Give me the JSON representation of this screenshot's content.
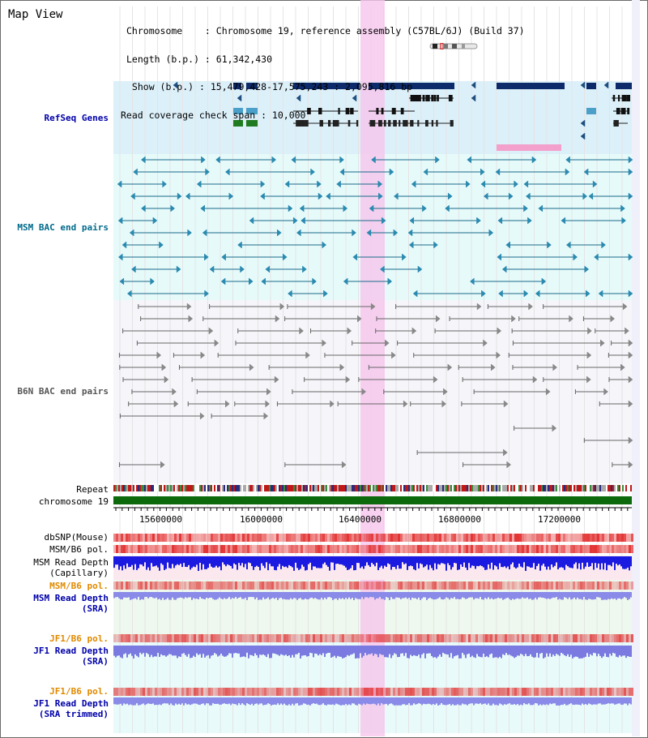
{
  "view_title": "Map View",
  "header": {
    "chromosome_line": "Chromosome    : Chromosome 19, reference assembly (C57BL/6J) (Build 37)",
    "length_line": "Length (b.p.) : 61,342,430",
    "show_line": " Show (b.p.) : 15,479,428-17,575,243 : 2,095,816 bp",
    "coverage_line": "Read coverage check span : 10,000"
  },
  "tracks": {
    "refseq": "RefSeq Genes",
    "msm_bac": "MSM BAC end pairs",
    "b6n_bac": "B6N BAC end pairs",
    "repeat": "Repeat",
    "chromosome": "chromosome 19",
    "dbsnp": "dbSNP(Mouse)",
    "msm_b6_pol_1": "MSM/B6 pol.",
    "msm_depth_cap_1": "MSM Read Depth",
    "msm_depth_cap_2": "(Capillary)",
    "msm_b6_pol_2": "MSM/B6 pol.",
    "msm_depth_sra_1": "MSM Read Depth",
    "msm_depth_sra_2": "(SRA)",
    "jf1_b6_pol_1": "JF1/B6 pol.",
    "jf1_depth_sra_1": "JF1 Read Depth",
    "jf1_depth_sra_2": "(SRA)",
    "jf1_b6_pol_2": "JF1/B6 pol.",
    "jf1_depth_trim_1": "JF1 Read Depth",
    "jf1_depth_trim_2": "(SRA trimmed)"
  },
  "axis": {
    "ticks": [
      "15600000",
      "16000000",
      "16400000",
      "16800000",
      "17200000"
    ]
  },
  "colors": {
    "refseq_label": "#0000aa",
    "msm_label": "#006a8a",
    "b6n_label": "#444444",
    "pol_orange": "#e08a00",
    "depth_blue": "#0000aa",
    "highlight": "#f6c6ec",
    "refseq_bg": "#dcf0fa",
    "msm_bg": "#e6fafa",
    "b6n_bg": "#f5f5fa"
  }
}
